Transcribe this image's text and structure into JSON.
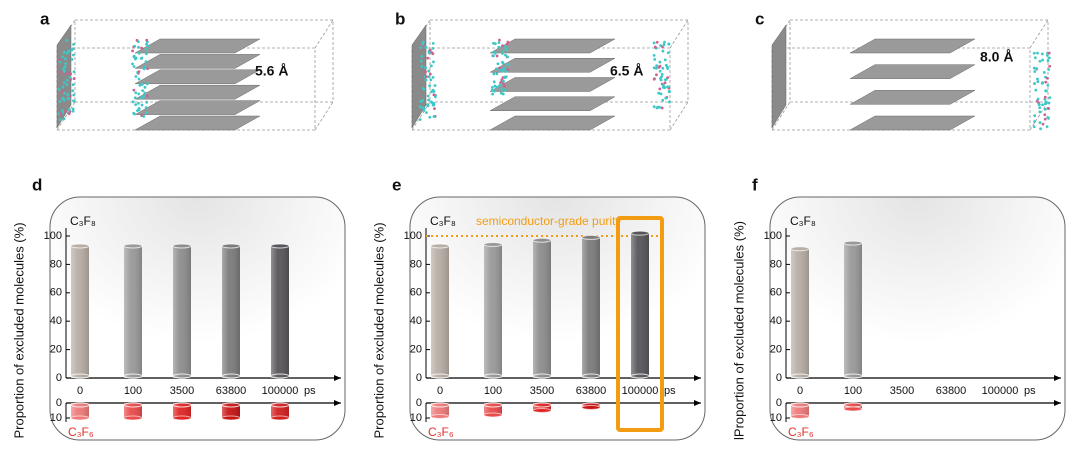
{
  "panels": [
    {
      "label": "a",
      "text": "5.6 Å"
    },
    {
      "label": "b",
      "text": "6.5 Å"
    },
    {
      "label": "c",
      "text": "8.0 Å"
    }
  ],
  "chart_data": [
    {
      "type": "bar",
      "label": "d",
      "y_label": "Proportion of excluded molecules (%)",
      "categories": [
        "0",
        "100",
        "3500",
        "63800",
        "100000"
      ],
      "x_unit": "ps",
      "ylim": [
        0,
        100
      ],
      "yticks": [
        0,
        20,
        40,
        60,
        80,
        100
      ],
      "ylim_lower": [
        0,
        10
      ],
      "yticks_lower": [
        0,
        10
      ],
      "series": [
        {
          "name": "C₃F₈",
          "colors": [
            "#b7aea5",
            "#9a9a9a",
            "#8e8e8e",
            "#7c7c7c",
            "#58565a"
          ],
          "values": [
            93,
            93,
            93,
            93,
            93
          ]
        },
        {
          "name": "C₃F₆",
          "colors": [
            "#f07a7a",
            "#ea4b4b",
            "#e22525",
            "#c81414",
            "#d42020"
          ],
          "values": [
            10,
            10,
            10,
            10,
            10
          ]
        }
      ]
    },
    {
      "type": "bar",
      "label": "e",
      "y_label": "Proportion of excluded molecules (%)",
      "categories": [
        "0",
        "100",
        "3500",
        "63800",
        "100000"
      ],
      "x_unit": "ps",
      "ylim": [
        0,
        100
      ],
      "yticks": [
        0,
        20,
        40,
        60,
        80,
        100
      ],
      "ylim_lower": [
        0,
        10
      ],
      "yticks_lower": [
        0,
        10
      ],
      "reference_line": 100,
      "annotation": "semiconductor-grade purity",
      "highlight": 4,
      "series": [
        {
          "name": "C₃F₈",
          "colors": [
            "#b7aea5",
            "#9a9a9a",
            "#8e8e8e",
            "#7c7c7c",
            "#58565a"
          ],
          "values": [
            93,
            94,
            97,
            99,
            102
          ]
        },
        {
          "name": "C₃F₆",
          "colors": [
            "#f07a7a",
            "#ea4b4b",
            "#e22525",
            "#c81414",
            "#d42020"
          ],
          "values": [
            9,
            8,
            5,
            3,
            0
          ]
        }
      ]
    },
    {
      "type": "bar",
      "label": "f",
      "y_label": "lProportion of excluded molecules (%)",
      "categories": [
        "0",
        "100",
        "3500",
        "63800",
        "100000"
      ],
      "x_unit": "ps",
      "ylim": [
        0,
        100
      ],
      "yticks": [
        0,
        20,
        40,
        60,
        80,
        100
      ],
      "ylim_lower": [
        0,
        10
      ],
      "yticks_lower": [
        0,
        10
      ],
      "series": [
        {
          "name": "C₃F₈",
          "colors": [
            "#b7aea5",
            "#9a9a9a",
            "#8e8e8e",
            "#7c7c7c",
            "#58565a"
          ],
          "values": [
            91,
            95,
            0,
            0,
            0
          ]
        },
        {
          "name": "C₃F₆",
          "colors": [
            "#f07a7a",
            "#ea4b4b",
            "#e22525",
            "#c81414",
            "#d42020"
          ],
          "values": [
            9,
            4,
            0,
            0,
            0
          ]
        }
      ]
    }
  ]
}
